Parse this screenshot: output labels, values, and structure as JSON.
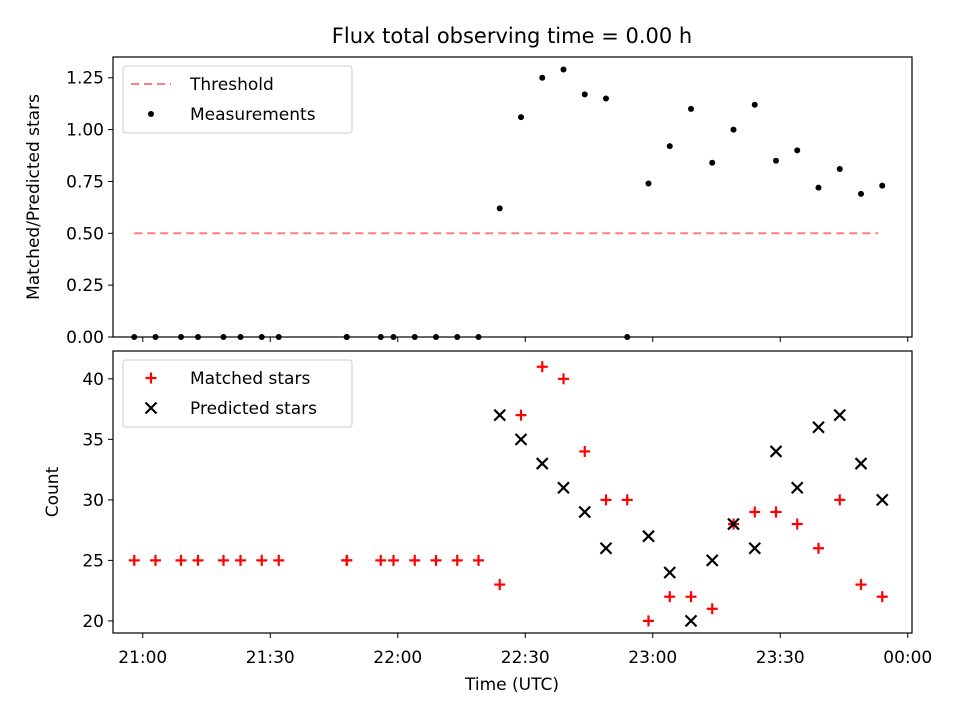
{
  "figure": {
    "title": "Flux total observing time = 0.00 h"
  },
  "chart_data": [
    {
      "type": "scatter",
      "panel": "top",
      "ylabel": "Matched/Predicted stars",
      "xlabel": "",
      "ylim": [
        0,
        1.35
      ],
      "xlim": [
        "20:53",
        "00:01"
      ],
      "yticks": [
        0.0,
        0.25,
        0.5,
        0.75,
        1.0,
        1.25
      ],
      "ytick_labels": [
        "0.00",
        "0.25",
        "0.50",
        "0.75",
        "1.00",
        "1.25"
      ],
      "grid": false,
      "legend": "top-left",
      "series": [
        {
          "name": "Threshold",
          "kind": "line",
          "style": "dashed",
          "color": "#ff7f7f",
          "x": [
            "20:58",
            "23:53"
          ],
          "y": [
            0.5,
            0.5
          ]
        },
        {
          "name": "Measurements",
          "kind": "scatter",
          "marker": "dot",
          "color": "#000000",
          "x": [
            "20:58",
            "21:03",
            "21:09",
            "21:13",
            "21:19",
            "21:23",
            "21:28",
            "21:32",
            "21:48",
            "21:48",
            "21:56",
            "21:59",
            "22:04",
            "22:09",
            "22:14",
            "22:19",
            "22:24",
            "22:29",
            "22:34",
            "22:39",
            "22:44",
            "22:49",
            "22:54",
            "22:59",
            "23:04",
            "23:09",
            "23:14",
            "23:19",
            "23:24",
            "23:29",
            "23:34",
            "23:39",
            "23:44",
            "23:49",
            "23:54"
          ],
          "y": [
            0,
            0,
            0,
            0,
            0,
            0,
            0,
            0,
            0,
            0,
            0,
            0,
            0,
            0,
            0,
            0,
            0.62,
            1.06,
            1.25,
            1.29,
            1.17,
            1.15,
            0,
            0.74,
            0.92,
            1.1,
            0.84,
            1.0,
            1.12,
            0.85,
            0.9,
            0.72,
            0.81,
            0.69,
            0.73
          ]
        }
      ]
    },
    {
      "type": "scatter",
      "panel": "bottom",
      "ylabel": "Count",
      "xlabel": "Time (UTC)",
      "ylim": [
        19,
        42.3
      ],
      "xlim": [
        "20:53",
        "00:01"
      ],
      "yticks": [
        20,
        25,
        30,
        35,
        40
      ],
      "ytick_labels": [
        "20",
        "25",
        "30",
        "35",
        "40"
      ],
      "xtick_labels": [
        "21:00",
        "21:30",
        "22:00",
        "22:30",
        "23:00",
        "23:30",
        "00:00"
      ],
      "grid": false,
      "legend": "top-left",
      "series": [
        {
          "name": "Matched stars",
          "kind": "scatter",
          "marker": "plus",
          "color": "#ff0000",
          "x": [
            "20:58",
            "21:03",
            "21:09",
            "21:13",
            "21:19",
            "21:23",
            "21:28",
            "21:32",
            "21:48",
            "21:48",
            "21:56",
            "21:59",
            "22:04",
            "22:09",
            "22:14",
            "22:19",
            "22:24",
            "22:29",
            "22:34",
            "22:39",
            "22:44",
            "22:49",
            "22:54",
            "22:59",
            "23:04",
            "23:09",
            "23:14",
            "23:19",
            "23:24",
            "23:29",
            "23:34",
            "23:39",
            "23:44",
            "23:49",
            "23:54"
          ],
          "y": [
            25,
            25,
            25,
            25,
            25,
            25,
            25,
            25,
            25,
            25,
            25,
            25,
            25,
            25,
            25,
            25,
            23,
            37,
            41,
            40,
            34,
            30,
            30,
            20,
            22,
            22,
            21,
            28,
            29,
            29,
            28,
            26,
            30,
            23,
            22
          ]
        },
        {
          "name": "Predicted stars",
          "kind": "scatter",
          "marker": "x",
          "color": "#000000",
          "x": [
            "22:24",
            "22:29",
            "22:34",
            "22:39",
            "22:44",
            "22:49",
            "22:59",
            "23:04",
            "23:09",
            "23:14",
            "23:19",
            "23:24",
            "23:29",
            "23:34",
            "23:39",
            "23:44",
            "23:49",
            "23:54"
          ],
          "y": [
            37,
            35,
            33,
            31,
            29,
            26,
            27,
            24,
            20,
            25,
            28,
            26,
            34,
            31,
            36,
            37,
            33,
            30
          ]
        }
      ]
    }
  ]
}
